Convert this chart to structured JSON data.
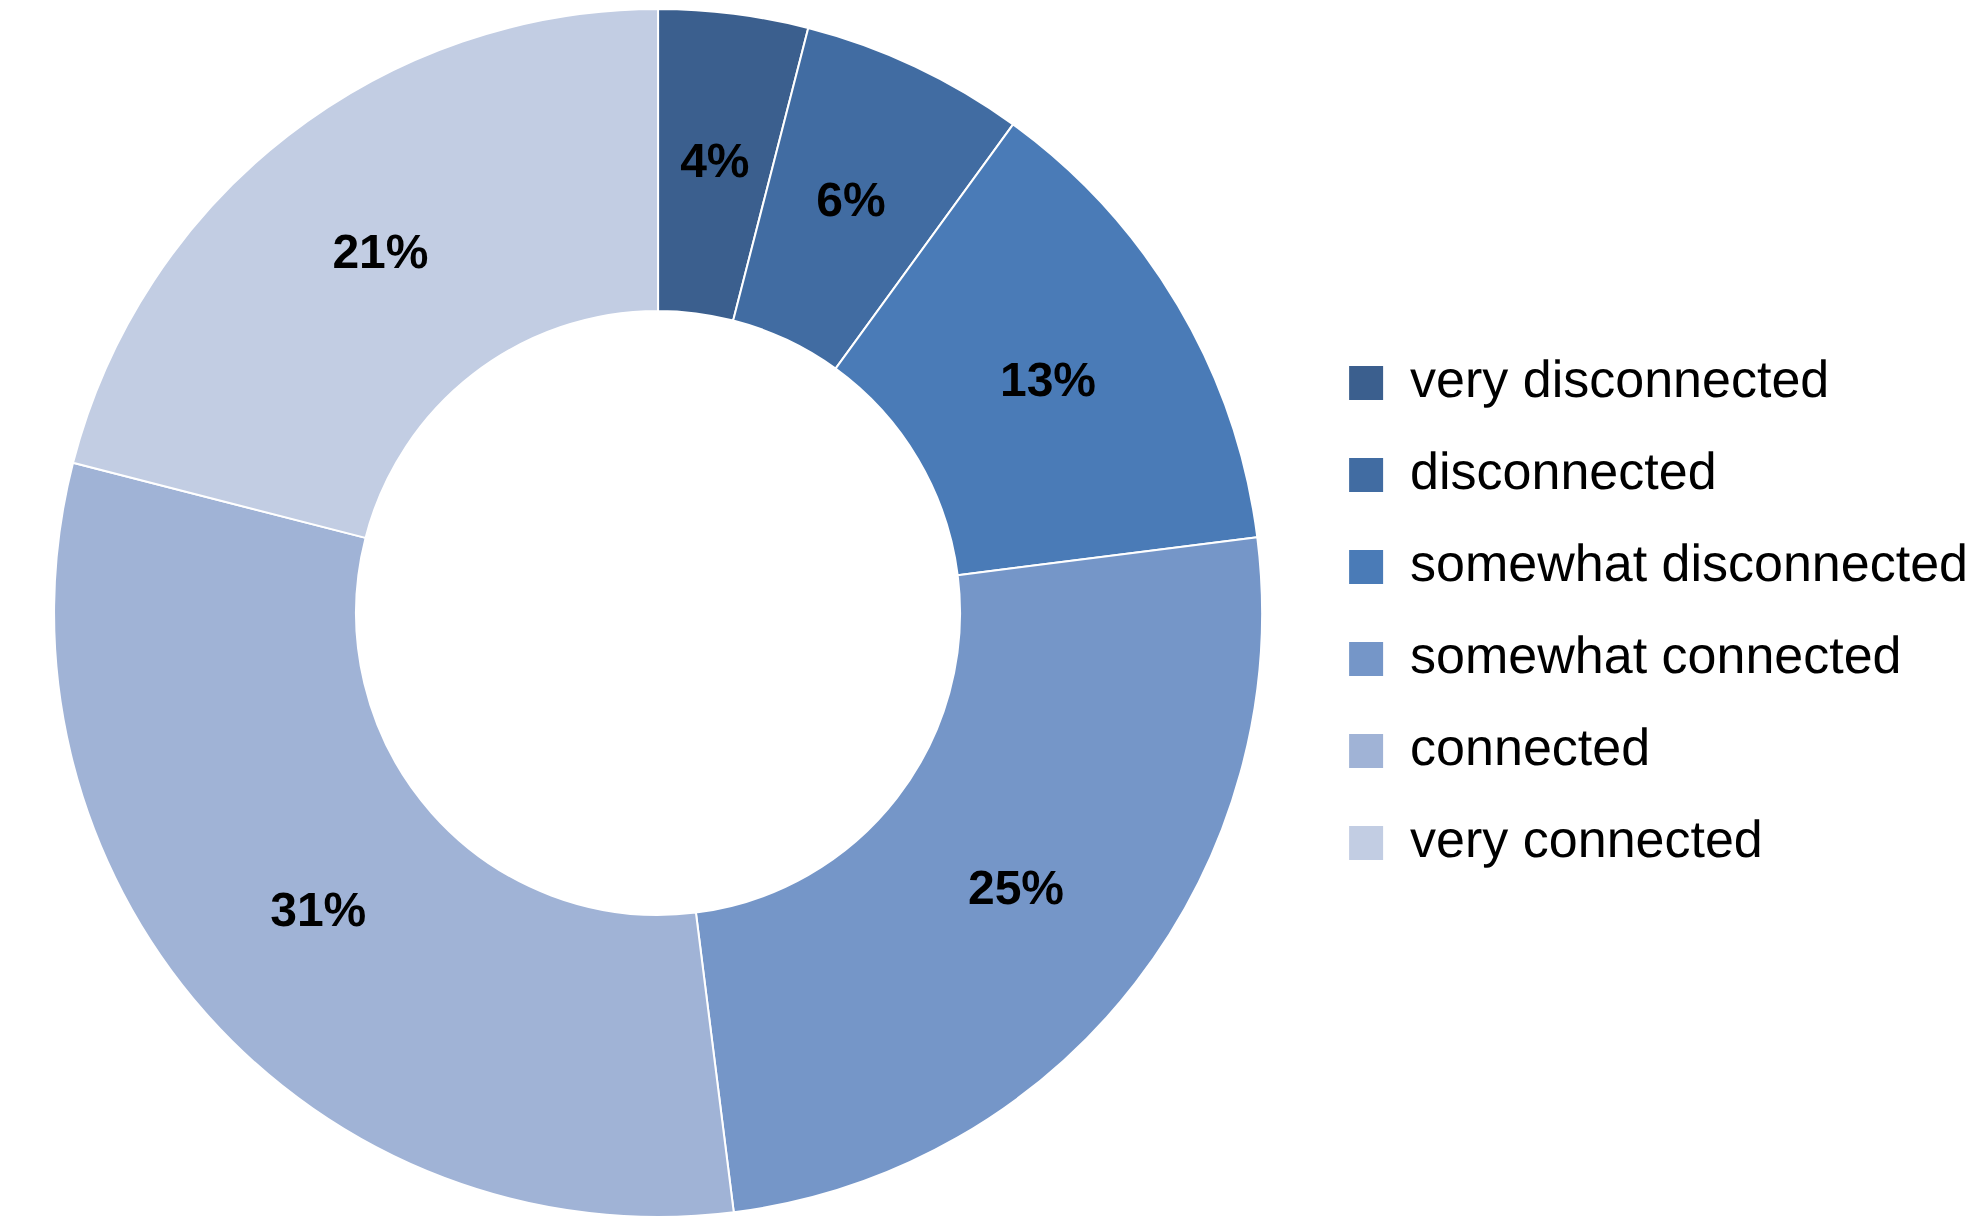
{
  "chart_data": {
    "type": "donut",
    "categories": [
      "very disconnected",
      "disconnected",
      "somewhat disconnected",
      "somewhat connected",
      "connected",
      "very connected"
    ],
    "values": [
      4,
      6,
      13,
      25,
      31,
      21
    ],
    "colors": [
      "#3b5f8e",
      "#416ca2",
      "#4a7bb7",
      "#7596c8",
      "#a0b3d6",
      "#c2cde3"
    ],
    "value_labels": [
      "4%",
      "6%",
      "13%",
      "25%",
      "31%",
      "21%"
    ],
    "legend": "right"
  }
}
